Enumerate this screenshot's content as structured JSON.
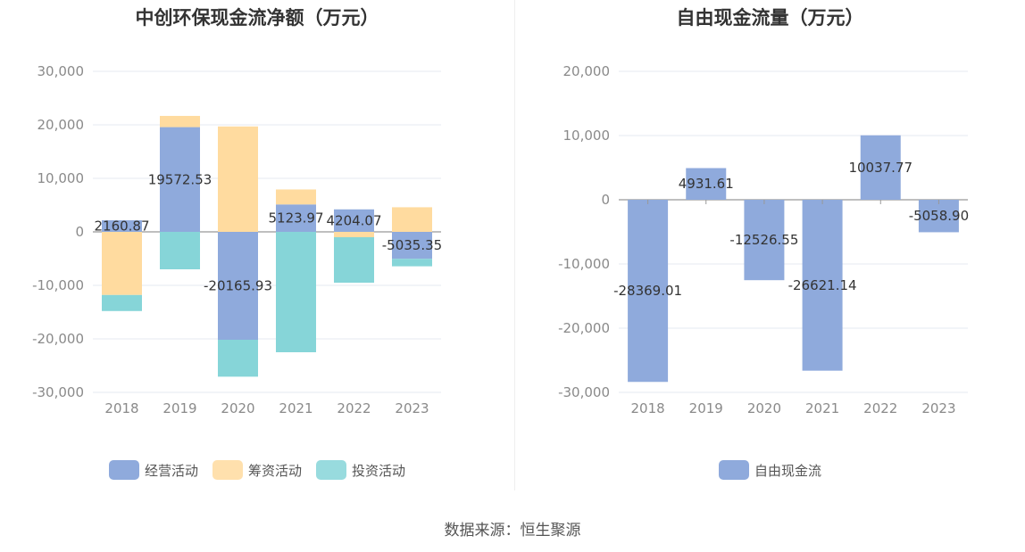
{
  "source": "数据来源：恒生聚源",
  "chart_data": [
    {
      "type": "bar",
      "stacked": true,
      "title": "中创环保现金流净额（万元）",
      "categories": [
        "2018",
        "2019",
        "2020",
        "2021",
        "2022",
        "2023"
      ],
      "ylim": [
        -30000,
        30000
      ],
      "yticks": [
        30000,
        20000,
        10000,
        0,
        -10000,
        -20000,
        -30000
      ],
      "ytick_labels": [
        "30,000",
        "20,000",
        "10,000",
        "0",
        "-10,000",
        "-20,000",
        "-30,000"
      ],
      "grid": true,
      "legend_position": "bottom",
      "series": [
        {
          "name": "经营活动",
          "color": "#8faadc",
          "values": [
            2160.87,
            19572.53,
            -20165.93,
            5123.97,
            4204.07,
            -5035.35
          ],
          "labels": [
            "2160.87",
            "19572.53",
            "-20165.93",
            "5123.97",
            "4204.07",
            "-5035.35"
          ]
        },
        {
          "name": "筹资活动",
          "color": "#ffdb9f",
          "values": [
            -11800,
            2100,
            19700,
            2800,
            -1000,
            4600
          ]
        },
        {
          "name": "投资活动",
          "color": "#86d5d8",
          "values": [
            -3000,
            -7000,
            -6900,
            -22500,
            -8500,
            -1400
          ]
        }
      ]
    },
    {
      "type": "bar",
      "title": "自由现金流量（万元）",
      "categories": [
        "2018",
        "2019",
        "2020",
        "2021",
        "2022",
        "2023"
      ],
      "ylim": [
        -30000,
        20000
      ],
      "yticks": [
        20000,
        10000,
        0,
        -10000,
        -20000,
        -30000
      ],
      "ytick_labels": [
        "20,000",
        "10,000",
        "0",
        "-10,000",
        "-20,000",
        "-30,000"
      ],
      "grid": true,
      "legend_position": "bottom",
      "series": [
        {
          "name": "自由现金流",
          "color": "#8faadc",
          "values": [
            -28369.01,
            4931.61,
            -12526.55,
            -26621.14,
            10037.77,
            -5058.9
          ],
          "labels": [
            "-28369.01",
            "4931.61",
            "-12526.55",
            "-26621.14",
            "10037.77",
            "-5058.90"
          ]
        }
      ]
    }
  ]
}
